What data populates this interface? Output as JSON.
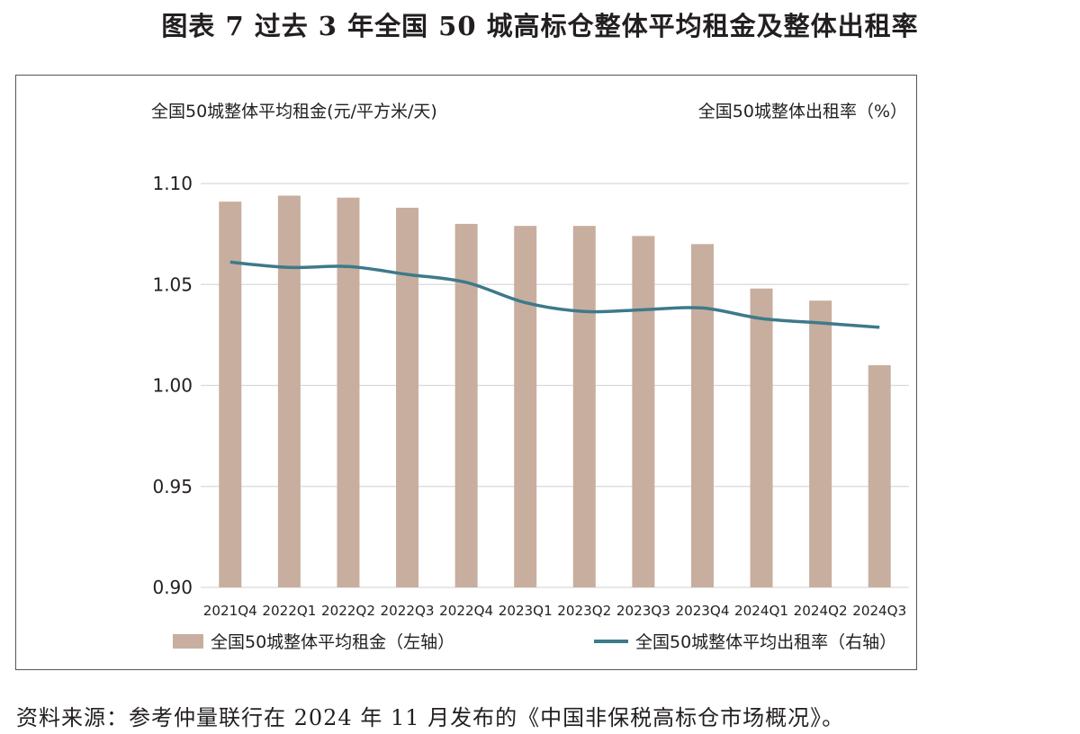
{
  "figure_title": "图表 7  过去 3 年全国 50 城高标仓整体平均租金及整体出租率",
  "source_note": "资料来源：参考仲量联行在 2024 年 11 月发布的《中国非保税高标仓市场概况》。",
  "colors": {
    "bar": "#c8ae9f",
    "line": "#3d7a8a",
    "grid": "#d9d9d9",
    "text": "#231f20"
  },
  "chart_data": {
    "type": "bar",
    "left_axis_title": "全国50城整体平均租金(元/平方米/天)",
    "right_axis_title": "全国50城整体出租率（%）",
    "categories": [
      "2021Q4",
      "2022Q1",
      "2022Q2",
      "2022Q3",
      "2022Q4",
      "2023Q1",
      "2023Q2",
      "2023Q3",
      "2023Q4",
      "2024Q1",
      "2024Q2",
      "2024Q3"
    ],
    "y_left": {
      "ylim": [
        0.9,
        1.1
      ],
      "ticks": [
        "0.90",
        "0.95",
        "1.00",
        "1.05",
        "1.10"
      ]
    },
    "y_right": {
      "ylim": [
        50,
        100
      ],
      "ticks": [
        "50",
        "55",
        "60",
        "65",
        "70",
        "75",
        "80",
        "85",
        "90",
        "95",
        "100"
      ]
    },
    "grid": true,
    "legend_position": "bottom",
    "series": [
      {
        "name": "全国50城整体平均租金（左轴）",
        "type": "bar",
        "axis": "left",
        "values": [
          1.091,
          1.094,
          1.093,
          1.088,
          1.08,
          1.079,
          1.079,
          1.074,
          1.07,
          1.048,
          1.042,
          1.01
        ]
      },
      {
        "name": "全国50城整体平均出租率（右轴）",
        "type": "line",
        "axis": "right",
        "values": [
          87.0,
          86.4,
          86.5,
          85.6,
          84.7,
          82.4,
          81.4,
          81.6,
          81.8,
          80.6,
          80.1,
          79.6
        ]
      }
    ]
  }
}
